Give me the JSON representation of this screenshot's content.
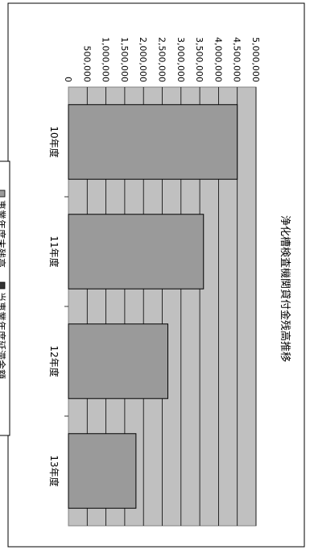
{
  "chart_data": {
    "type": "bar",
    "orientation": "rotated-90-clockwise",
    "title": "浄化槽検査機関貸付金残高推移",
    "categories": [
      "10年度",
      "11年度",
      "12年度",
      "13年度"
    ],
    "series": [
      {
        "name": "事業年度末残高",
        "values": [
          4500000,
          3600000,
          2650000,
          1800000
        ],
        "color": "#9a9a9a"
      },
      {
        "name": "当事業年度延滞金額",
        "values": [
          0,
          0,
          0,
          0
        ],
        "color": "#333333"
      }
    ],
    "y_ticks": [
      "0",
      "500,000",
      "1,000,000",
      "1,500,000",
      "2,000,000",
      "2,500,000",
      "3,000,000",
      "3,500,000",
      "4,000,000",
      "4,500,000",
      "5,000,000"
    ],
    "ylim": [
      0,
      5000000
    ],
    "plot_color": "#c0c0c0",
    "grid": true,
    "legend_position": "bottom"
  }
}
